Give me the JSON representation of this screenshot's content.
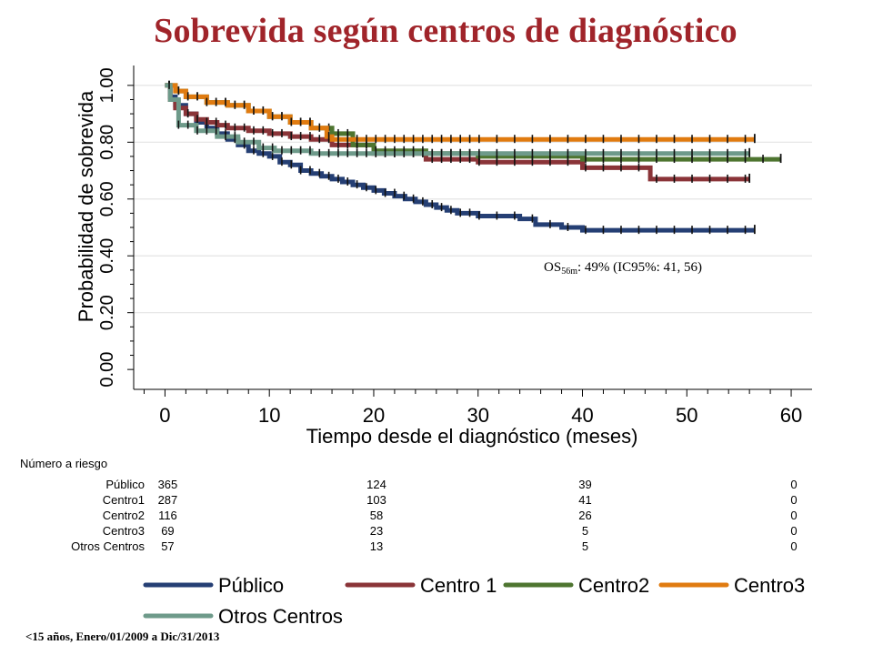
{
  "title": "Sobrevida según centros de diagnóstico",
  "footnote": "<15 años, Enero/01/2009 a Dic/31/2013",
  "annotation": {
    "prefix": "OS",
    "subscript": "56m",
    "text": ": 49% (IC95%: 41, 56)"
  },
  "chart_data": {
    "type": "line",
    "step": true,
    "xlabel": "Tiempo desde el diagnóstico (meses)",
    "ylabel": "Probabilidad de sobrevida",
    "xlim": [
      -3,
      62
    ],
    "ylim": [
      -0.07,
      1.07
    ],
    "xticks": [
      0,
      10,
      20,
      30,
      40,
      50,
      60
    ],
    "xticklabels": [
      "0",
      "10",
      "20",
      "30",
      "40",
      "50",
      "60"
    ],
    "yticks": [
      0,
      0.2,
      0.4,
      0.6,
      0.8,
      1.0
    ],
    "yticklabels": [
      "0.00",
      "0.20",
      "0.40",
      "0.60",
      "0.80",
      "1.00"
    ],
    "grid": true,
    "legend_position": "bottom",
    "series": [
      {
        "name": "Público",
        "color": "#253f74",
        "x": [
          0,
          0.5,
          1,
          2,
          3,
          4,
          5,
          6,
          7,
          8,
          9,
          10,
          11,
          12,
          13,
          14,
          15,
          16,
          17,
          18,
          19,
          20,
          21,
          22,
          23,
          24,
          25,
          26,
          27,
          28,
          30,
          32,
          34,
          35.5,
          38,
          40,
          45,
          50,
          56.5
        ],
        "y": [
          1.0,
          0.96,
          0.93,
          0.9,
          0.87,
          0.85,
          0.83,
          0.81,
          0.79,
          0.77,
          0.76,
          0.75,
          0.73,
          0.72,
          0.7,
          0.69,
          0.68,
          0.67,
          0.66,
          0.65,
          0.64,
          0.63,
          0.62,
          0.61,
          0.6,
          0.59,
          0.58,
          0.57,
          0.56,
          0.55,
          0.54,
          0.54,
          0.53,
          0.51,
          0.5,
          0.49,
          0.49,
          0.49,
          0.49
        ]
      },
      {
        "name": "Centro 1",
        "color": "#8a3438",
        "x": [
          0,
          0.5,
          1,
          2,
          3,
          4,
          5,
          6,
          8,
          10,
          12,
          14,
          16,
          20,
          25,
          30,
          35,
          40,
          46.5,
          50,
          56
        ],
        "y": [
          1.0,
          0.95,
          0.92,
          0.9,
          0.88,
          0.87,
          0.86,
          0.85,
          0.84,
          0.83,
          0.82,
          0.81,
          0.79,
          0.76,
          0.74,
          0.73,
          0.73,
          0.71,
          0.67,
          0.67,
          0.67
        ]
      },
      {
        "name": "Centro2",
        "color": "#4e7530",
        "x": [
          0,
          1,
          2,
          4,
          6,
          8,
          10,
          12,
          14,
          16,
          18,
          20,
          25,
          30,
          35,
          40,
          50,
          59
        ],
        "y": [
          1.0,
          0.98,
          0.96,
          0.94,
          0.93,
          0.91,
          0.89,
          0.87,
          0.85,
          0.83,
          0.79,
          0.77,
          0.76,
          0.75,
          0.75,
          0.74,
          0.74,
          0.74
        ]
      },
      {
        "name": "Centro3",
        "color": "#e07b10",
        "x": [
          0,
          1,
          2,
          4,
          6,
          8,
          10,
          12,
          14,
          15.5,
          16,
          20,
          30,
          40,
          56.5
        ],
        "y": [
          1.0,
          0.98,
          0.96,
          0.94,
          0.93,
          0.91,
          0.89,
          0.87,
          0.85,
          0.82,
          0.81,
          0.81,
          0.81,
          0.81,
          0.81
        ]
      },
      {
        "name": "Otros Centros",
        "color": "#6e9a8a",
        "x": [
          0,
          0.5,
          1.3,
          3,
          5,
          7,
          9,
          10.5,
          14,
          20,
          30,
          40,
          56
        ],
        "y": [
          1.0,
          0.95,
          0.86,
          0.84,
          0.82,
          0.8,
          0.78,
          0.77,
          0.76,
          0.76,
          0.76,
          0.76,
          0.76
        ]
      }
    ]
  },
  "risk_table": {
    "title": "Número a riesgo",
    "time_points": [
      0,
      20,
      40,
      60
    ],
    "rows": [
      {
        "label": "Público",
        "values": [
          "365",
          "124",
          "39",
          "0"
        ]
      },
      {
        "label": "Centro1",
        "values": [
          "287",
          "103",
          "41",
          "0"
        ]
      },
      {
        "label": "Centro2",
        "values": [
          "116",
          "58",
          "26",
          "0"
        ]
      },
      {
        "label": "Centro3",
        "values": [
          "69",
          "23",
          "5",
          "0"
        ]
      },
      {
        "label": "Otros Centros",
        "values": [
          "57",
          "13",
          "5",
          "0"
        ]
      }
    ]
  },
  "legend": [
    {
      "label": "Público",
      "color": "#253f74"
    },
    {
      "label": "Centro 1",
      "color": "#8a3438"
    },
    {
      "label": "Centro2",
      "color": "#4e7530"
    },
    {
      "label": "Centro3",
      "color": "#e07b10"
    },
    {
      "label": "Otros Centros",
      "color": "#6e9a8a"
    }
  ]
}
